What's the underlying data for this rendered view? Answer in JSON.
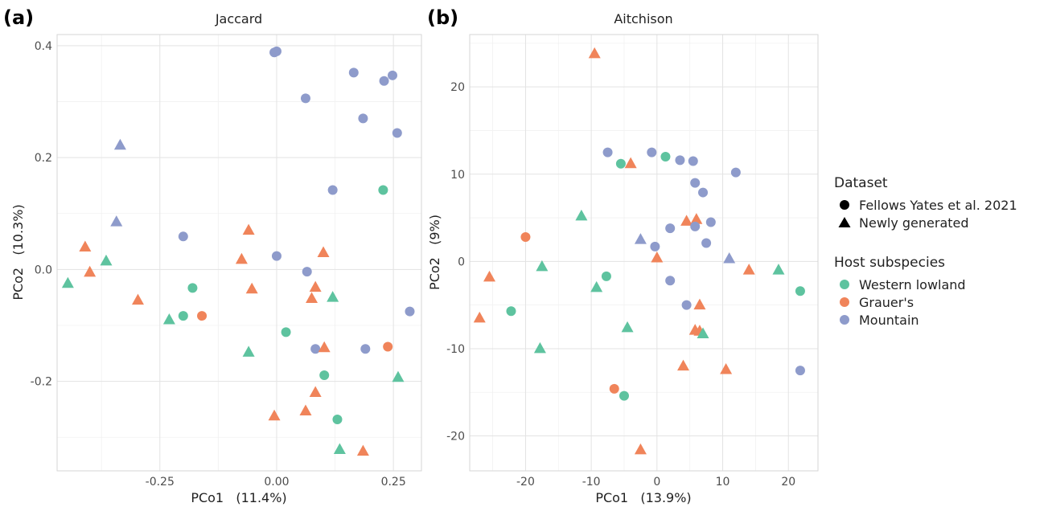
{
  "figure": {
    "colors": {
      "Western lowland": "#5ec39f",
      "Grauer's": "#f0845a",
      "Mountain": "#8e9bcb"
    }
  },
  "legend": {
    "dataset_title": "Dataset",
    "dataset_items": [
      {
        "label": "Fellows Yates et al. 2021",
        "shape": "circle"
      },
      {
        "label": "Newly generated",
        "shape": "triangle"
      }
    ],
    "host_title": "Host subspecies",
    "host_items": [
      {
        "label": "Western lowland",
        "color": "#5ec39f"
      },
      {
        "label": "Grauer's",
        "color": "#f0845a"
      },
      {
        "label": "Mountain",
        "color": "#8e9bcb"
      }
    ]
  },
  "chart_data": [
    {
      "type": "scatter",
      "panel_label": "(a)",
      "title": "Jaccard",
      "xlabel": "PCo1   (11.4%)",
      "ylabel": "PCo2   (10.3%)",
      "xlim": [
        -0.47,
        0.31
      ],
      "ylim": [
        -0.36,
        0.42
      ],
      "xticks": [
        -0.25,
        0.0,
        0.25
      ],
      "xtick_labels": [
        "-0.25",
        "0.00",
        "0.25"
      ],
      "yticks": [
        -0.2,
        0.0,
        0.2,
        0.4
      ],
      "ytick_labels": [
        "-0.2",
        "0.0",
        "0.2",
        "0.4"
      ],
      "grid": true,
      "points": [
        {
          "x": -0.005,
          "y": 0.388,
          "subspecies": "Mountain",
          "dataset": "Fellows Yates et al. 2021"
        },
        {
          "x": 0.0,
          "y": 0.39,
          "subspecies": "Mountain",
          "dataset": "Fellows Yates et al. 2021"
        },
        {
          "x": 0.165,
          "y": 0.352,
          "subspecies": "Mountain",
          "dataset": "Fellows Yates et al. 2021"
        },
        {
          "x": 0.23,
          "y": 0.337,
          "subspecies": "Mountain",
          "dataset": "Fellows Yates et al. 2021"
        },
        {
          "x": 0.248,
          "y": 0.347,
          "subspecies": "Mountain",
          "dataset": "Fellows Yates et al. 2021"
        },
        {
          "x": 0.062,
          "y": 0.306,
          "subspecies": "Mountain",
          "dataset": "Fellows Yates et al. 2021"
        },
        {
          "x": 0.185,
          "y": 0.27,
          "subspecies": "Mountain",
          "dataset": "Fellows Yates et al. 2021"
        },
        {
          "x": 0.258,
          "y": 0.244,
          "subspecies": "Mountain",
          "dataset": "Fellows Yates et al. 2021"
        },
        {
          "x": 0.12,
          "y": 0.142,
          "subspecies": "Mountain",
          "dataset": "Fellows Yates et al. 2021"
        },
        {
          "x": -0.2,
          "y": 0.059,
          "subspecies": "Mountain",
          "dataset": "Fellows Yates et al. 2021"
        },
        {
          "x": 0.0,
          "y": 0.024,
          "subspecies": "Mountain",
          "dataset": "Fellows Yates et al. 2021"
        },
        {
          "x": 0.065,
          "y": -0.004,
          "subspecies": "Mountain",
          "dataset": "Fellows Yates et al. 2021"
        },
        {
          "x": 0.285,
          "y": -0.075,
          "subspecies": "Mountain",
          "dataset": "Fellows Yates et al. 2021"
        },
        {
          "x": 0.083,
          "y": -0.142,
          "subspecies": "Mountain",
          "dataset": "Fellows Yates et al. 2021"
        },
        {
          "x": 0.19,
          "y": -0.142,
          "subspecies": "Mountain",
          "dataset": "Fellows Yates et al. 2021"
        },
        {
          "x": -0.335,
          "y": 0.222,
          "subspecies": "Mountain",
          "dataset": "Newly generated"
        },
        {
          "x": -0.343,
          "y": 0.085,
          "subspecies": "Mountain",
          "dataset": "Newly generated"
        },
        {
          "x": 0.228,
          "y": 0.142,
          "subspecies": "Western lowland",
          "dataset": "Fellows Yates et al. 2021"
        },
        {
          "x": -0.18,
          "y": -0.033,
          "subspecies": "Western lowland",
          "dataset": "Fellows Yates et al. 2021"
        },
        {
          "x": -0.2,
          "y": -0.083,
          "subspecies": "Western lowland",
          "dataset": "Fellows Yates et al. 2021"
        },
        {
          "x": 0.02,
          "y": -0.112,
          "subspecies": "Western lowland",
          "dataset": "Fellows Yates et al. 2021"
        },
        {
          "x": 0.102,
          "y": -0.189,
          "subspecies": "Western lowland",
          "dataset": "Fellows Yates et al. 2021"
        },
        {
          "x": 0.13,
          "y": -0.268,
          "subspecies": "Western lowland",
          "dataset": "Fellows Yates et al. 2021"
        },
        {
          "x": -0.447,
          "y": -0.025,
          "subspecies": "Western lowland",
          "dataset": "Newly generated"
        },
        {
          "x": -0.365,
          "y": 0.015,
          "subspecies": "Western lowland",
          "dataset": "Newly generated"
        },
        {
          "x": -0.23,
          "y": -0.09,
          "subspecies": "Western lowland",
          "dataset": "Newly generated"
        },
        {
          "x": 0.12,
          "y": -0.05,
          "subspecies": "Western lowland",
          "dataset": "Newly generated"
        },
        {
          "x": -0.06,
          "y": -0.148,
          "subspecies": "Western lowland",
          "dataset": "Newly generated"
        },
        {
          "x": 0.26,
          "y": -0.193,
          "subspecies": "Western lowland",
          "dataset": "Newly generated"
        },
        {
          "x": 0.135,
          "y": -0.322,
          "subspecies": "Western lowland",
          "dataset": "Newly generated"
        },
        {
          "x": -0.16,
          "y": -0.083,
          "subspecies": "Grauer's",
          "dataset": "Fellows Yates et al. 2021"
        },
        {
          "x": 0.238,
          "y": -0.138,
          "subspecies": "Grauer's",
          "dataset": "Fellows Yates et al. 2021"
        },
        {
          "x": -0.41,
          "y": 0.04,
          "subspecies": "Grauer's",
          "dataset": "Newly generated"
        },
        {
          "x": -0.4,
          "y": -0.005,
          "subspecies": "Grauer's",
          "dataset": "Newly generated"
        },
        {
          "x": -0.297,
          "y": -0.055,
          "subspecies": "Grauer's",
          "dataset": "Newly generated"
        },
        {
          "x": -0.06,
          "y": 0.07,
          "subspecies": "Grauer's",
          "dataset": "Newly generated"
        },
        {
          "x": -0.075,
          "y": 0.018,
          "subspecies": "Grauer's",
          "dataset": "Newly generated"
        },
        {
          "x": -0.053,
          "y": -0.035,
          "subspecies": "Grauer's",
          "dataset": "Newly generated"
        },
        {
          "x": 0.1,
          "y": 0.03,
          "subspecies": "Grauer's",
          "dataset": "Newly generated"
        },
        {
          "x": 0.083,
          "y": -0.032,
          "subspecies": "Grauer's",
          "dataset": "Newly generated"
        },
        {
          "x": 0.075,
          "y": -0.052,
          "subspecies": "Grauer's",
          "dataset": "Newly generated"
        },
        {
          "x": 0.102,
          "y": -0.14,
          "subspecies": "Grauer's",
          "dataset": "Newly generated"
        },
        {
          "x": 0.083,
          "y": -0.22,
          "subspecies": "Grauer's",
          "dataset": "Newly generated"
        },
        {
          "x": 0.062,
          "y": -0.253,
          "subspecies": "Grauer's",
          "dataset": "Newly generated"
        },
        {
          "x": -0.005,
          "y": -0.262,
          "subspecies": "Grauer's",
          "dataset": "Newly generated"
        },
        {
          "x": 0.185,
          "y": -0.325,
          "subspecies": "Grauer's",
          "dataset": "Newly generated"
        }
      ]
    },
    {
      "type": "scatter",
      "panel_label": "(b)",
      "title": "Aitchison",
      "xlabel": "PCo1   (13.9%)",
      "ylabel": "PCo2   (9%)",
      "xlim": [
        -28.5,
        24.5
      ],
      "ylim": [
        -24,
        26
      ],
      "xticks": [
        -20,
        -10,
        0,
        10,
        20
      ],
      "xtick_labels": [
        "-20",
        "-10",
        "0",
        "10",
        "20"
      ],
      "yticks": [
        -20,
        -10,
        0,
        10,
        20
      ],
      "ytick_labels": [
        "-20",
        "-10",
        "0",
        "10",
        "20"
      ],
      "grid": true,
      "points": [
        {
          "x": -9.5,
          "y": 23.8,
          "subspecies": "Grauer's",
          "dataset": "Newly generated"
        },
        {
          "x": -4,
          "y": 11.2,
          "subspecies": "Grauer's",
          "dataset": "Newly generated"
        },
        {
          "x": -20,
          "y": 2.8,
          "subspecies": "Grauer's",
          "dataset": "Fellows Yates et al. 2021"
        },
        {
          "x": 4.5,
          "y": 4.6,
          "subspecies": "Grauer's",
          "dataset": "Newly generated"
        },
        {
          "x": 6,
          "y": 4.8,
          "subspecies": "Grauer's",
          "dataset": "Newly generated"
        },
        {
          "x": 0,
          "y": 0.4,
          "subspecies": "Grauer's",
          "dataset": "Newly generated"
        },
        {
          "x": 14,
          "y": -1,
          "subspecies": "Grauer's",
          "dataset": "Newly generated"
        },
        {
          "x": -25.5,
          "y": -1.8,
          "subspecies": "Grauer's",
          "dataset": "Newly generated"
        },
        {
          "x": -27,
          "y": -6.5,
          "subspecies": "Grauer's",
          "dataset": "Newly generated"
        },
        {
          "x": 6.5,
          "y": -5,
          "subspecies": "Grauer's",
          "dataset": "Newly generated"
        },
        {
          "x": 5.8,
          "y": -7.9,
          "subspecies": "Grauer's",
          "dataset": "Newly generated"
        },
        {
          "x": 6.5,
          "y": -8,
          "subspecies": "Grauer's",
          "dataset": "Newly generated"
        },
        {
          "x": 4,
          "y": -12,
          "subspecies": "Grauer's",
          "dataset": "Newly generated"
        },
        {
          "x": 10.5,
          "y": -12.4,
          "subspecies": "Grauer's",
          "dataset": "Newly generated"
        },
        {
          "x": -6.5,
          "y": -14.6,
          "subspecies": "Grauer's",
          "dataset": "Fellows Yates et al. 2021"
        },
        {
          "x": -2.5,
          "y": -21.6,
          "subspecies": "Grauer's",
          "dataset": "Newly generated"
        },
        {
          "x": -7.5,
          "y": 12.5,
          "subspecies": "Mountain",
          "dataset": "Fellows Yates et al. 2021"
        },
        {
          "x": -0.8,
          "y": 12.5,
          "subspecies": "Mountain",
          "dataset": "Fellows Yates et al. 2021"
        },
        {
          "x": 3.5,
          "y": 11.6,
          "subspecies": "Mountain",
          "dataset": "Fellows Yates et al. 2021"
        },
        {
          "x": 5.5,
          "y": 11.5,
          "subspecies": "Mountain",
          "dataset": "Fellows Yates et al. 2021"
        },
        {
          "x": 12,
          "y": 10.2,
          "subspecies": "Mountain",
          "dataset": "Fellows Yates et al. 2021"
        },
        {
          "x": 5.8,
          "y": 9,
          "subspecies": "Mountain",
          "dataset": "Fellows Yates et al. 2021"
        },
        {
          "x": 7,
          "y": 7.9,
          "subspecies": "Mountain",
          "dataset": "Fellows Yates et al. 2021"
        },
        {
          "x": 8.2,
          "y": 4.5,
          "subspecies": "Mountain",
          "dataset": "Fellows Yates et al. 2021"
        },
        {
          "x": 5.8,
          "y": 4,
          "subspecies": "Mountain",
          "dataset": "Fellows Yates et al. 2021"
        },
        {
          "x": 2,
          "y": 3.8,
          "subspecies": "Mountain",
          "dataset": "Fellows Yates et al. 2021"
        },
        {
          "x": 7.5,
          "y": 2.1,
          "subspecies": "Mountain",
          "dataset": "Fellows Yates et al. 2021"
        },
        {
          "x": -0.3,
          "y": 1.7,
          "subspecies": "Mountain",
          "dataset": "Fellows Yates et al. 2021"
        },
        {
          "x": -2.5,
          "y": 2.5,
          "subspecies": "Mountain",
          "dataset": "Newly generated"
        },
        {
          "x": 11,
          "y": 0.3,
          "subspecies": "Mountain",
          "dataset": "Newly generated"
        },
        {
          "x": 2,
          "y": -2.2,
          "subspecies": "Mountain",
          "dataset": "Fellows Yates et al. 2021"
        },
        {
          "x": 4.5,
          "y": -5,
          "subspecies": "Mountain",
          "dataset": "Fellows Yates et al. 2021"
        },
        {
          "x": 21.8,
          "y": -12.5,
          "subspecies": "Mountain",
          "dataset": "Fellows Yates et al. 2021"
        },
        {
          "x": -5.5,
          "y": 11.2,
          "subspecies": "Western lowland",
          "dataset": "Fellows Yates et al. 2021"
        },
        {
          "x": 1.3,
          "y": 12,
          "subspecies": "Western lowland",
          "dataset": "Fellows Yates et al. 2021"
        },
        {
          "x": -11.5,
          "y": 5.2,
          "subspecies": "Western lowland",
          "dataset": "Newly generated"
        },
        {
          "x": -17.5,
          "y": -0.6,
          "subspecies": "Western lowland",
          "dataset": "Newly generated"
        },
        {
          "x": -7.7,
          "y": -1.7,
          "subspecies": "Western lowland",
          "dataset": "Fellows Yates et al. 2021"
        },
        {
          "x": -9.2,
          "y": -3,
          "subspecies": "Western lowland",
          "dataset": "Newly generated"
        },
        {
          "x": -22.2,
          "y": -5.7,
          "subspecies": "Western lowland",
          "dataset": "Fellows Yates et al. 2021"
        },
        {
          "x": -4.5,
          "y": -7.6,
          "subspecies": "Western lowland",
          "dataset": "Newly generated"
        },
        {
          "x": -17.8,
          "y": -10,
          "subspecies": "Western lowland",
          "dataset": "Newly generated"
        },
        {
          "x": 7,
          "y": -8.3,
          "subspecies": "Western lowland",
          "dataset": "Newly generated"
        },
        {
          "x": 18.5,
          "y": -1,
          "subspecies": "Western lowland",
          "dataset": "Newly generated"
        },
        {
          "x": 21.8,
          "y": -3.4,
          "subspecies": "Western lowland",
          "dataset": "Fellows Yates et al. 2021"
        },
        {
          "x": -5,
          "y": -15.4,
          "subspecies": "Western lowland",
          "dataset": "Fellows Yates et al. 2021"
        }
      ]
    }
  ]
}
